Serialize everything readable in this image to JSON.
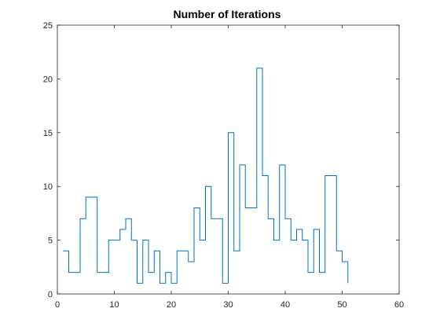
{
  "chart_data": {
    "type": "line",
    "style": "stairs",
    "title": "Number of Iterations",
    "xlabel": "",
    "ylabel": "",
    "xlim": [
      0,
      60
    ],
    "ylim": [
      0,
      25
    ],
    "xticks": [
      0,
      10,
      20,
      30,
      40,
      50,
      60
    ],
    "yticks": [
      0,
      5,
      10,
      15,
      20,
      25
    ],
    "grid": false,
    "series": [
      {
        "color": "#0072BD",
        "x": [
          1,
          2,
          3,
          4,
          5,
          6,
          7,
          8,
          9,
          10,
          11,
          12,
          13,
          14,
          15,
          16,
          17,
          18,
          19,
          20,
          21,
          22,
          23,
          24,
          25,
          26,
          27,
          28,
          29,
          30,
          31,
          32,
          33,
          34,
          35,
          36,
          37,
          38,
          39,
          40,
          41,
          42,
          43,
          44,
          45,
          46,
          47,
          48,
          49,
          50,
          51
        ],
        "y": [
          4,
          2,
          2,
          7,
          9,
          9,
          2,
          2,
          5,
          5,
          6,
          7,
          5,
          1,
          5,
          2,
          4,
          1,
          2,
          1,
          4,
          4,
          3,
          8,
          5,
          10,
          7,
          7,
          1,
          15,
          4,
          12,
          8,
          8,
          21,
          11,
          7,
          5,
          12,
          7,
          5,
          6,
          5,
          2,
          6,
          2,
          11,
          11,
          4,
          3,
          1
        ]
      }
    ]
  }
}
